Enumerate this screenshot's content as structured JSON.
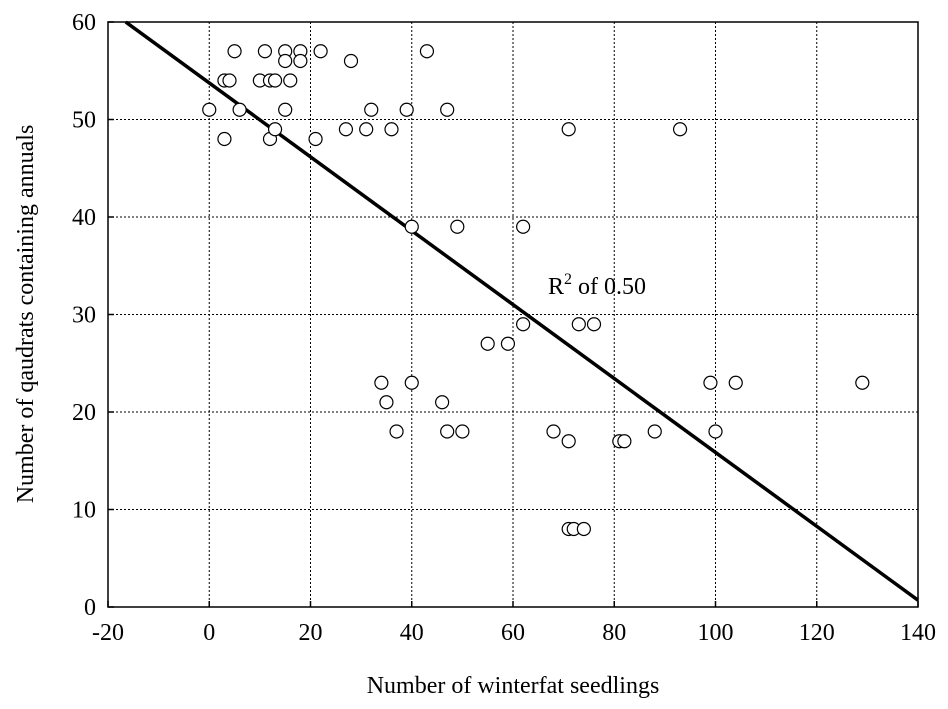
{
  "chart_data": {
    "type": "scatter",
    "x_label": "Number of winterfat seedlings",
    "y_label": "Number of qaudrats containing annuals",
    "x": [
      0,
      3,
      3,
      4,
      5,
      6,
      10,
      11,
      12,
      12,
      13,
      13,
      15,
      15,
      15,
      16,
      18,
      18,
      21,
      22,
      27,
      28,
      31,
      32,
      34,
      35,
      36,
      37,
      39,
      40,
      40,
      43,
      46,
      47,
      47,
      49,
      50,
      55,
      59,
      62,
      62,
      68,
      71,
      71,
      71,
      72,
      73,
      74,
      76,
      81,
      82,
      88,
      93,
      99,
      100,
      104,
      129
    ],
    "values": [
      51,
      48,
      54,
      54,
      57,
      51,
      54,
      57,
      48,
      54,
      54,
      49,
      57,
      56,
      51,
      54,
      57,
      56,
      48,
      57,
      49,
      56,
      49,
      51,
      23,
      21,
      49,
      18,
      51,
      39,
      23,
      57,
      21,
      51,
      18,
      39,
      18,
      27,
      27,
      39,
      29,
      18,
      17,
      49,
      8,
      8,
      29,
      8,
      29,
      17,
      17,
      18,
      49,
      23,
      18,
      23,
      23
    ],
    "marker_color": "#000000",
    "fit": {
      "x": [
        -16.5,
        140
      ],
      "values": [
        60,
        0.7
      ],
      "color": "#000000"
    },
    "annotation": {
      "base": "R",
      "sup": "2",
      "rest": " of 0.50"
    },
    "xlim": [
      -20,
      140
    ],
    "ylim": [
      0,
      60
    ],
    "xticks": [
      -20,
      0,
      20,
      40,
      60,
      80,
      100,
      120,
      140
    ],
    "yticks": [
      0,
      10,
      20,
      30,
      40,
      50,
      60
    ],
    "grid": true
  }
}
